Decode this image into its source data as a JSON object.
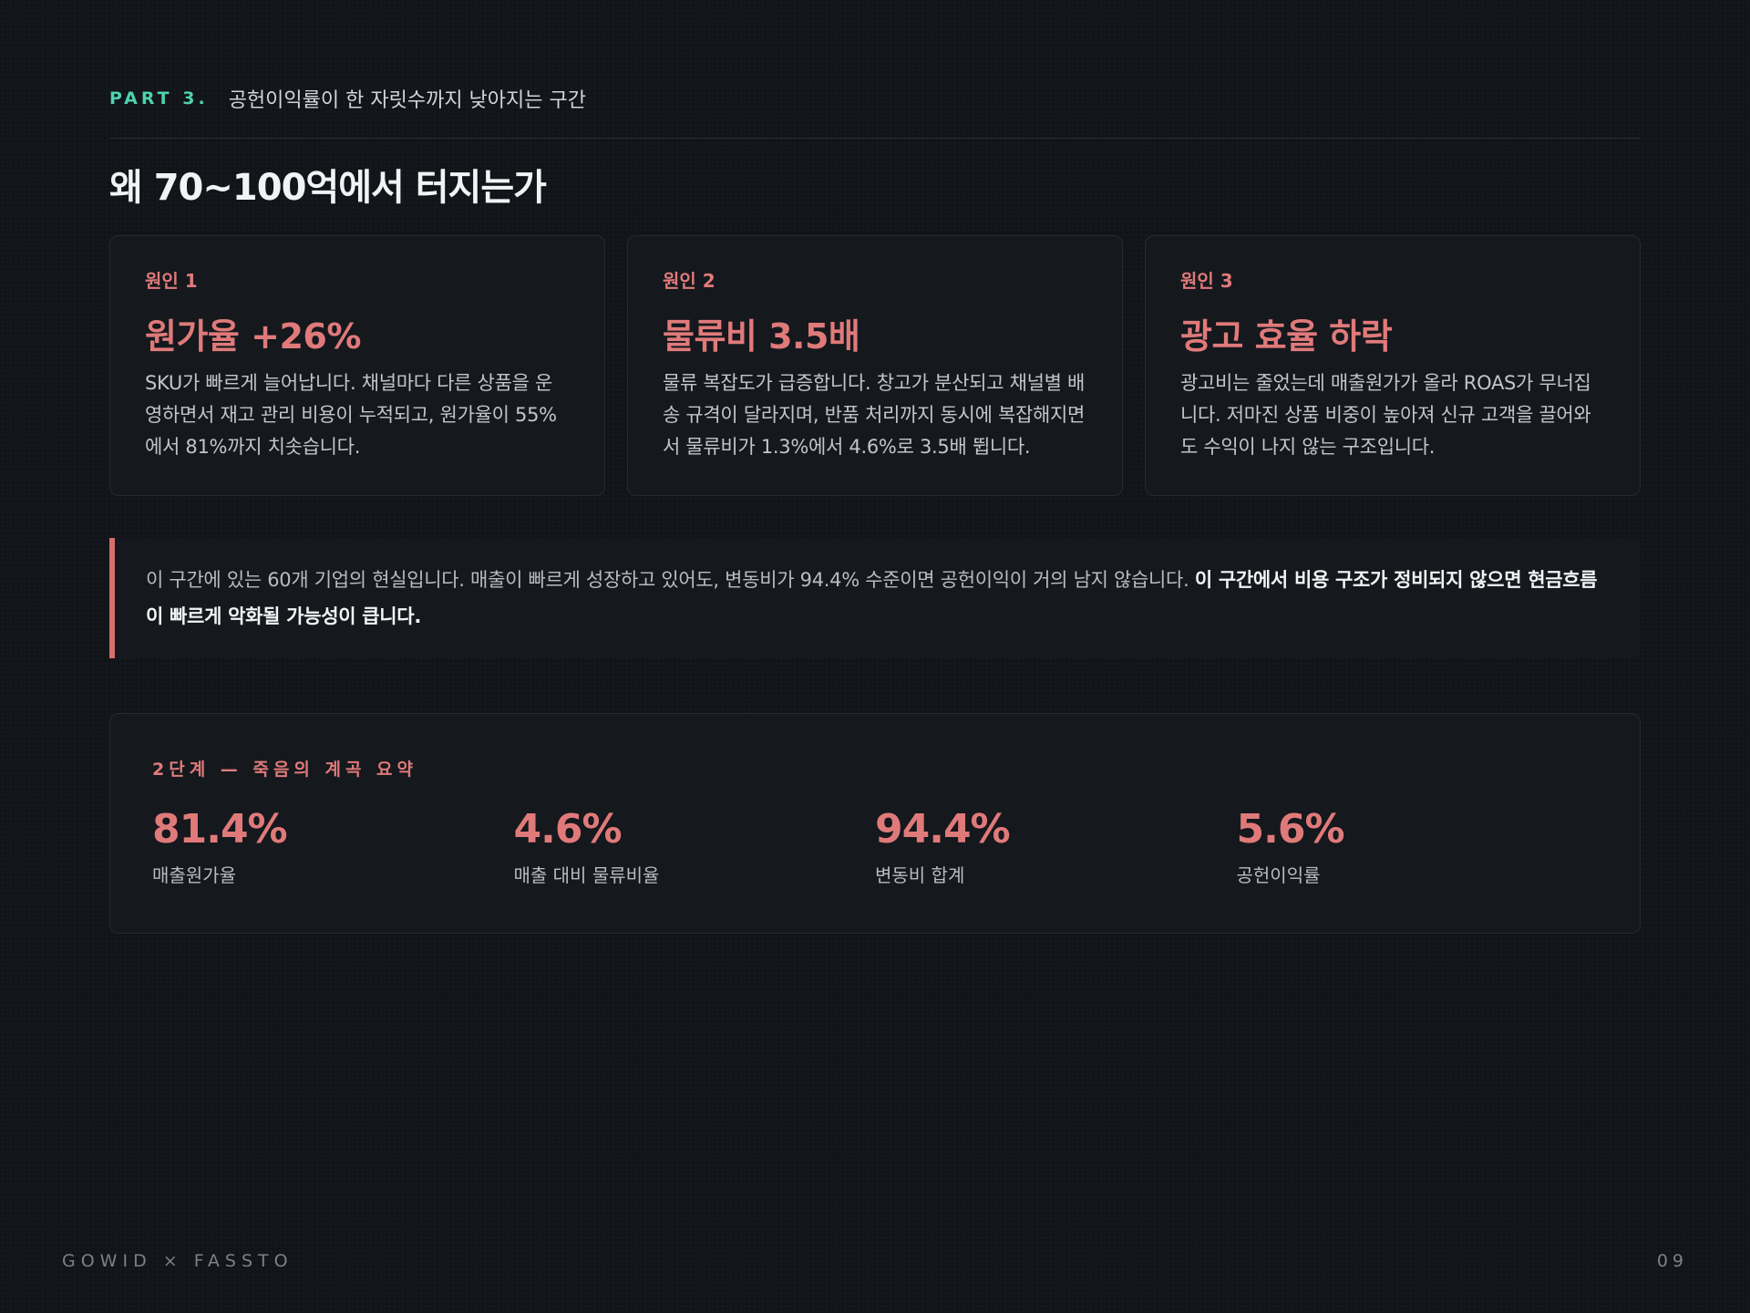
{
  "header": {
    "part_label": "PART 3.",
    "part_desc": "공헌이익률이 한 자릿수까지 낮아지는 구간"
  },
  "title": "왜 70~100억에서 터지는가",
  "causes": [
    {
      "kicker": "원인 1",
      "title": "원가율 +26%",
      "body": "SKU가 빠르게 늘어납니다. 채널마다 다른 상품을 운영하면서 재고 관리 비용이 누적되고, 원가율이 55%에서 81%까지 치솟습니다."
    },
    {
      "kicker": "원인 2",
      "title": "물류비 3.5배",
      "body": "물류 복잡도가 급증합니다. 창고가 분산되고 채널별 배송 규격이 달라지며, 반품 처리까지 동시에 복잡해지면서 물류비가 1.3%에서 4.6%로 3.5배 뜁니다."
    },
    {
      "kicker": "원인 3",
      "title": "광고 효율 하락",
      "body": "광고비는 줄었는데 매출원가가 올라 ROAS가 무너집니다. 저마진 상품 비중이 높아져 신규 고객을 끌어와도 수익이 나지 않는 구조입니다."
    }
  ],
  "callout": {
    "text": "이 구간에 있는 60개 기업의 현실입니다. 매출이 빠르게 성장하고 있어도, 변동비가 94.4% 수준이면 공헌이익이 거의 남지 않습니다. ",
    "emphasis": "이 구간에서 비용 구조가 정비되지 않으면 현금흐름이 빠르게 악화될 가능성이 큽니다."
  },
  "summary": {
    "title": "2단계 — 죽음의 계곡 요약",
    "metrics": [
      {
        "value": "81.4%",
        "label": "매출원가율"
      },
      {
        "value": "4.6%",
        "label": "매출 대비 물류비율"
      },
      {
        "value": "94.4%",
        "label": "변동비 합계"
      },
      {
        "value": "5.6%",
        "label": "공헌이익률"
      }
    ]
  },
  "footer": {
    "brand": "GOWID × FASSTO",
    "page_number": "09"
  },
  "colors": {
    "accent_teal": "#4fd1b0",
    "accent_red": "#e07a7a",
    "background": "#111419",
    "card": "#15181d"
  }
}
